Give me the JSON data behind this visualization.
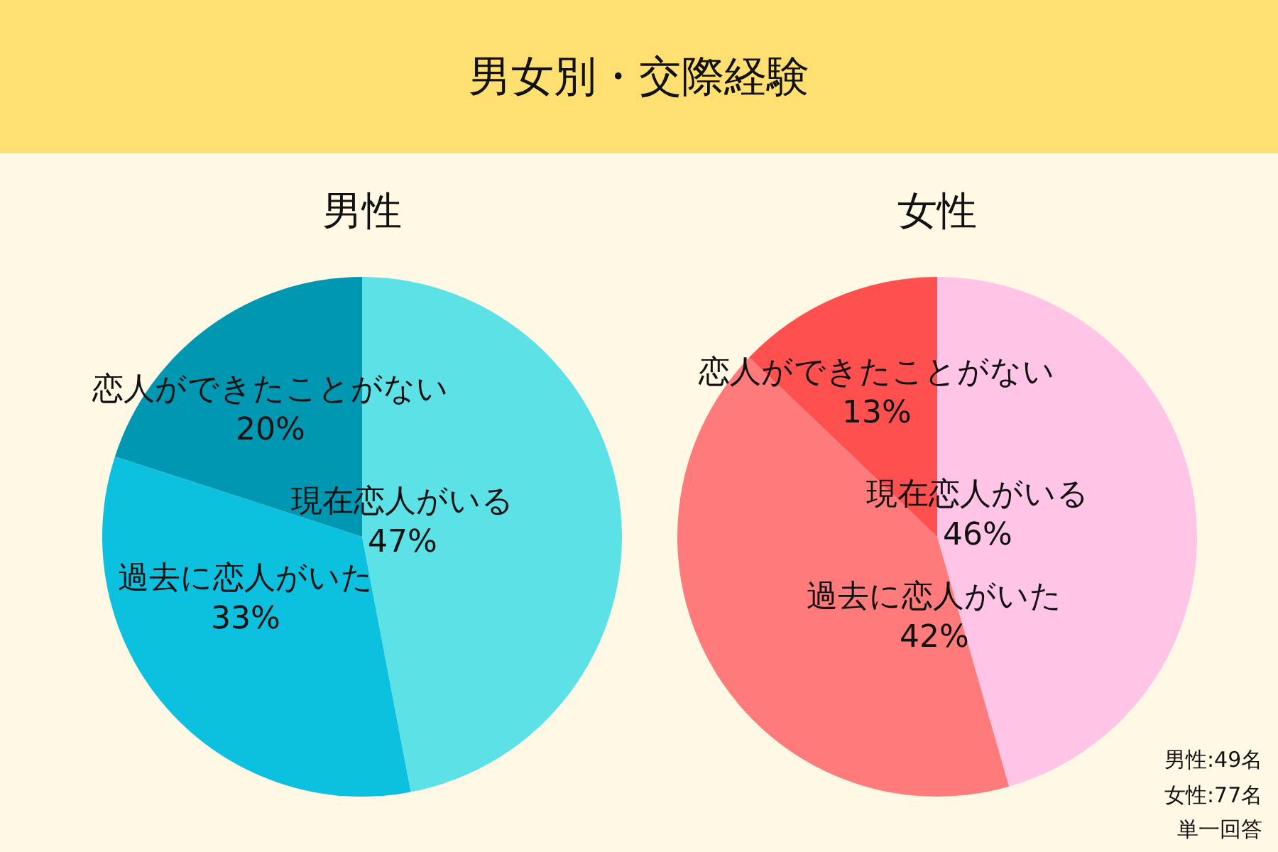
{
  "chart_data": [
    {
      "type": "pie",
      "title": "男女別・交際経験",
      "subtitle": "男性",
      "categories": [
        "現在恋人がいる",
        "過去に恋人がいた",
        "恋人ができたことがない"
      ],
      "values": [
        47,
        33,
        20
      ],
      "value_labels": [
        "47%",
        "33%",
        "20%"
      ],
      "colors": [
        "#5ce1e6",
        "#0cc0df",
        "#0097b2"
      ]
    },
    {
      "type": "pie",
      "subtitle": "女性",
      "categories": [
        "現在恋人がいる",
        "過去に恋人がいた",
        "恋人ができたことがない"
      ],
      "values": [
        46,
        42,
        13
      ],
      "value_labels": [
        "46%",
        "42%",
        "13%"
      ],
      "colors": [
        "#ffc4e6",
        "#ff7b7b",
        "#ff5050"
      ],
      "annotations": [
        "男性:49名",
        "女性:77名",
        "単一回答"
      ]
    }
  ]
}
